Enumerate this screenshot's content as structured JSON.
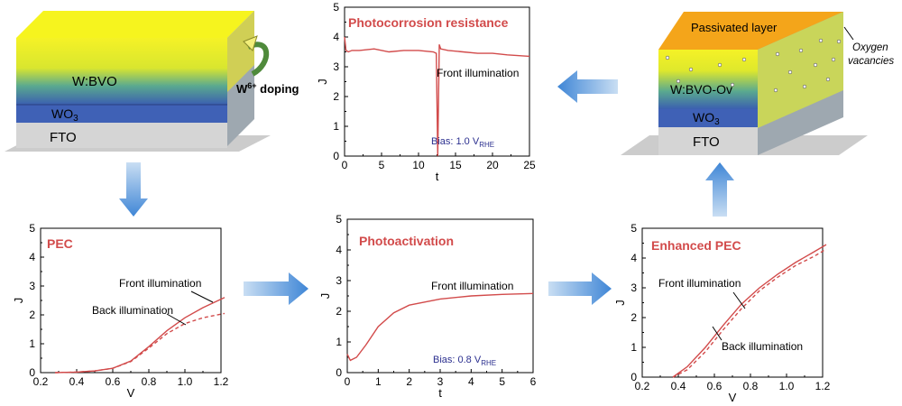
{
  "blocks": {
    "left": {
      "top_layer": "W:BVO",
      "mid_layer": "WO",
      "mid_sub": "3",
      "bottom_layer": "FTO",
      "doping_label": "W",
      "doping_sup": "6+",
      "doping_rest": " doping"
    },
    "right": {
      "passivated": "Passivated layer",
      "top_layer": "W:BVO-Ov",
      "mid_layer": "WO",
      "mid_sub": "3",
      "bottom_layer": "FTO",
      "vacancy_line1": "Oxygen",
      "vacancy_line2": "vacancies"
    }
  },
  "colors": {
    "curve": "#d24b4b",
    "arrow": "#4a90d9",
    "bias_text": "#2b2f8f"
  },
  "chart_data": [
    {
      "id": "pec",
      "type": "line",
      "title": "PEC",
      "xlabel": "V",
      "ylabel": "J",
      "xlim": [
        0.2,
        1.2
      ],
      "ylim": [
        0,
        5
      ],
      "xticks": [
        "0.2",
        "0.4",
        "0.6",
        "0.8",
        "1.0",
        "1.2"
      ],
      "yticks": [
        "0",
        "1",
        "2",
        "3",
        "4",
        "5"
      ],
      "annotations": [
        "Front illumination",
        "Back illumination"
      ],
      "series": [
        {
          "name": "Front illumination",
          "style": "solid",
          "x": [
            0.28,
            0.4,
            0.5,
            0.6,
            0.7,
            0.8,
            0.9,
            1.0,
            1.1,
            1.22
          ],
          "y": [
            0.0,
            0.02,
            0.06,
            0.15,
            0.4,
            0.9,
            1.45,
            1.9,
            2.25,
            2.6
          ]
        },
        {
          "name": "Back illumination",
          "style": "dashed",
          "x": [
            0.28,
            0.4,
            0.5,
            0.6,
            0.7,
            0.8,
            0.9,
            1.0,
            1.1,
            1.22
          ],
          "y": [
            0.0,
            0.02,
            0.06,
            0.15,
            0.38,
            0.85,
            1.35,
            1.7,
            1.9,
            2.05
          ]
        }
      ]
    },
    {
      "id": "photoactivation",
      "type": "line",
      "title": "Photoactivation",
      "xlabel": "t",
      "ylabel": "J",
      "xlim": [
        0,
        6
      ],
      "ylim": [
        0,
        5
      ],
      "xticks": [
        "0",
        "1",
        "2",
        "3",
        "4",
        "5",
        "6"
      ],
      "yticks": [
        "0",
        "1",
        "2",
        "3",
        "4",
        "5"
      ],
      "annotations": [
        "Front illumination"
      ],
      "bias": {
        "prefix": "Bias: 0.8 V",
        "sub": "RHE"
      },
      "series": [
        {
          "name": "Front illumination",
          "style": "solid",
          "x": [
            0,
            0.1,
            0.3,
            0.6,
            1.0,
            1.5,
            2.0,
            3.0,
            4.0,
            5.0,
            6.0
          ],
          "y": [
            0.6,
            0.4,
            0.5,
            0.9,
            1.5,
            1.95,
            2.2,
            2.4,
            2.5,
            2.55,
            2.58
          ]
        }
      ]
    },
    {
      "id": "corrosion",
      "type": "line",
      "title": "Photocorrosion resistance",
      "xlabel": "t",
      "ylabel": "J",
      "xlim": [
        0,
        25
      ],
      "ylim": [
        0,
        5
      ],
      "xticks": [
        "0",
        "5",
        "10",
        "15",
        "20",
        "25"
      ],
      "yticks": [
        "0",
        "1",
        "2",
        "3",
        "4",
        "5"
      ],
      "annotations": [
        "Front illumination"
      ],
      "bias": {
        "prefix": "Bias: 1.0 V",
        "sub": "RHE"
      },
      "series": [
        {
          "name": "Front illumination",
          "style": "solid",
          "x": [
            0,
            0.2,
            0.5,
            1,
            2,
            4,
            6,
            8,
            10,
            12,
            12.4,
            12.6,
            12.8,
            13,
            14,
            16,
            18,
            20,
            22,
            25
          ],
          "y": [
            4.0,
            3.55,
            3.5,
            3.55,
            3.55,
            3.6,
            3.5,
            3.55,
            3.55,
            3.5,
            3.45,
            0,
            3.75,
            3.6,
            3.55,
            3.5,
            3.45,
            3.45,
            3.4,
            3.35
          ]
        }
      ]
    },
    {
      "id": "enhanced",
      "type": "line",
      "title": "Enhanced PEC",
      "xlabel": "V",
      "ylabel": "J",
      "xlim": [
        0.2,
        1.2
      ],
      "ylim": [
        0,
        5
      ],
      "xticks": [
        "0.2",
        "0.4",
        "0.6",
        "0.8",
        "1.0",
        "1.2"
      ],
      "yticks": [
        "0",
        "1",
        "2",
        "3",
        "4",
        "5"
      ],
      "annotations": [
        "Front illumination",
        "Back illumination"
      ],
      "series": [
        {
          "name": "Front illumination",
          "style": "solid",
          "x": [
            0.37,
            0.45,
            0.55,
            0.65,
            0.75,
            0.85,
            0.95,
            1.05,
            1.15,
            1.22
          ],
          "y": [
            0.0,
            0.35,
            1.0,
            1.75,
            2.45,
            3.0,
            3.45,
            3.85,
            4.2,
            4.45
          ]
        },
        {
          "name": "Back illumination",
          "style": "dashed",
          "x": [
            0.37,
            0.45,
            0.55,
            0.65,
            0.75,
            0.85,
            0.95,
            1.05,
            1.15,
            1.22
          ],
          "y": [
            0.0,
            0.25,
            0.85,
            1.6,
            2.3,
            2.9,
            3.35,
            3.75,
            4.05,
            4.3
          ]
        }
      ]
    }
  ]
}
